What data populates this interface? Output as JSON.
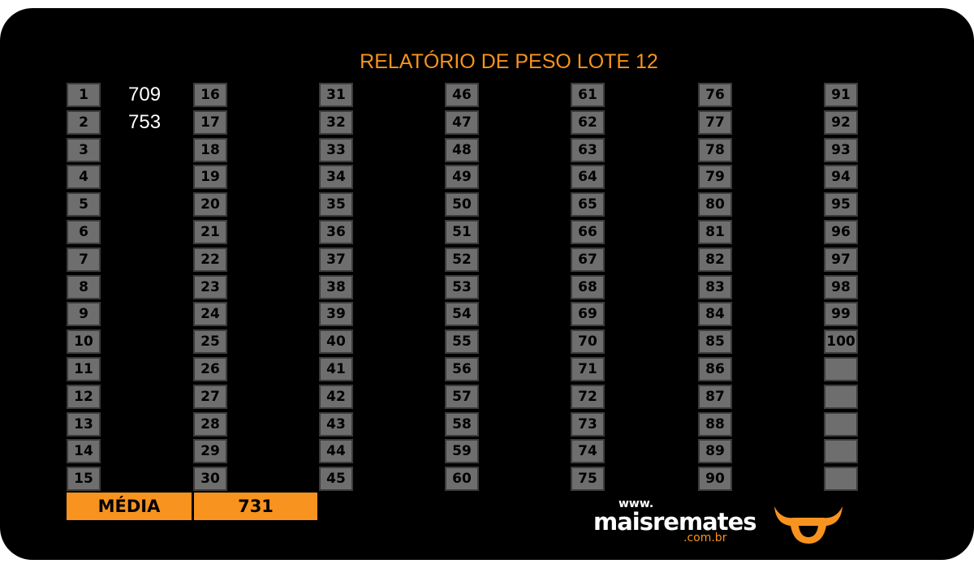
{
  "header": {
    "title": "RELATÓRIO DE PESO LOTE 12"
  },
  "table": {
    "columns": [
      [
        1,
        2,
        3,
        4,
        5,
        6,
        7,
        8,
        9,
        10,
        11,
        12,
        13,
        14,
        15
      ],
      [
        16,
        17,
        18,
        19,
        20,
        21,
        22,
        23,
        24,
        25,
        26,
        27,
        28,
        29,
        30
      ],
      [
        31,
        32,
        33,
        34,
        35,
        36,
        37,
        38,
        39,
        40,
        41,
        42,
        43,
        44,
        45
      ],
      [
        46,
        47,
        48,
        49,
        50,
        51,
        52,
        53,
        54,
        55,
        56,
        57,
        58,
        59,
        60
      ],
      [
        61,
        62,
        63,
        64,
        65,
        66,
        67,
        68,
        69,
        70,
        71,
        72,
        73,
        74,
        75
      ],
      [
        76,
        77,
        78,
        79,
        80,
        81,
        82,
        83,
        84,
        85,
        86,
        87,
        88,
        89,
        90
      ],
      [
        91,
        92,
        93,
        94,
        95,
        96,
        97,
        98,
        99,
        100,
        null,
        null,
        null,
        null,
        null
      ]
    ],
    "weights": [
      709,
      753
    ]
  },
  "summary": {
    "label": "MÉDIA",
    "value": 731
  },
  "logo": {
    "prefix": "www.",
    "name": "maisremates",
    "suffix": ".com.br"
  }
}
